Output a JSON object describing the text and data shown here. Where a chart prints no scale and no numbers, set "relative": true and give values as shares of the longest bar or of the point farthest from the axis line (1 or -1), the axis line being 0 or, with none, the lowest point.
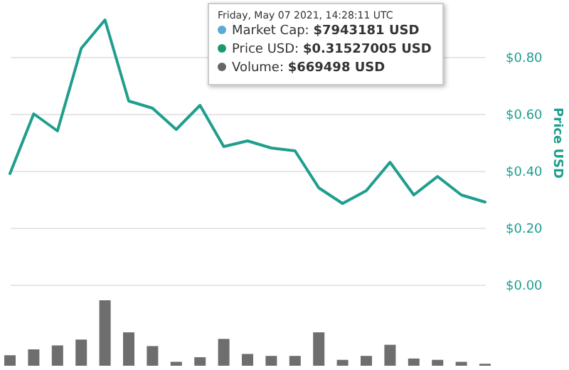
{
  "chart_data": [
    {
      "type": "line",
      "categories": [
        null,
        null,
        null,
        null,
        null,
        null,
        null,
        null,
        null,
        null,
        null,
        null,
        null,
        null,
        null,
        null,
        null,
        null,
        null,
        null,
        null
      ],
      "ylabel": "Price USD",
      "series": [
        {
          "color": "#1f9e8e",
          "values": [
            0.39,
            0.6,
            0.54,
            0.83,
            0.93,
            0.645,
            0.62,
            0.545,
            0.63,
            0.485,
            0.505,
            0.48,
            0.47,
            0.34,
            0.285,
            0.33,
            0.43,
            0.315,
            0.38,
            0.315,
            0.29
          ]
        }
      ],
      "ylim": [
        0,
        1.0
      ],
      "yticks": [
        {
          "value": 0,
          "label": "$0.00"
        },
        {
          "value": 0.2,
          "label": "$0.20"
        },
        {
          "value": 0.4,
          "label": "$0.40"
        },
        {
          "value": 0.6,
          "label": "$0.60"
        },
        {
          "value": 0.8,
          "label": "$0.80"
        }
      ],
      "grid": true,
      "marker": "none",
      "annotations": [
        "Friday, May 07 2021, 14:28:11 UTC",
        "Market Cap: $7943181 USD",
        "Price USD: $0.31527005 USD",
        "Volume: $669498 USD"
      ]
    },
    {
      "type": "bar",
      "relative": true,
      "categories": [
        null,
        null,
        null,
        null,
        null,
        null,
        null,
        null,
        null,
        null,
        null,
        null,
        null,
        null,
        null,
        null,
        null,
        null,
        null,
        null,
        null
      ],
      "series": [
        {
          "color": "#6e6e6e",
          "values": [
            0.16,
            0.25,
            0.31,
            0.4,
            1,
            0.51,
            0.3,
            0.06,
            0.13,
            0.41,
            0.18,
            0.15,
            0.15,
            0.51,
            0.09,
            0.15,
            0.32,
            0.11,
            0.09,
            0.06,
            0.03
          ]
        }
      ]
    }
  ]
}
